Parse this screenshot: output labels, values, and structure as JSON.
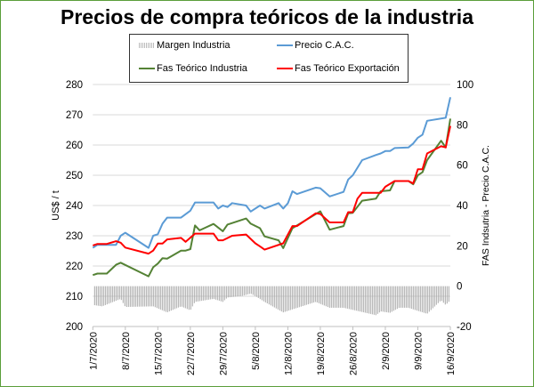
{
  "chart_data": {
    "type": "line",
    "title": "Precios de compra teóricos de la industria",
    "ylabel": "US$ / t",
    "y2label": "FAS Indsutria - Precio C.A.C.",
    "ylim": [
      200,
      280
    ],
    "y2lim": [
      -20,
      100
    ],
    "yticks": [
      "200",
      "210",
      "220",
      "230",
      "240",
      "250",
      "260",
      "270",
      "280"
    ],
    "y2ticks": [
      "-20",
      "0",
      "20",
      "40",
      "60",
      "80",
      "100"
    ],
    "xticks": [
      "1/7/2020",
      "8/7/2020",
      "15/7/2020",
      "22/7/2020",
      "29/7/2020",
      "5/8/2020",
      "12/8/2020",
      "19/8/2020",
      "26/8/2020",
      "2/9/2020",
      "9/9/2020",
      "16/9/2020"
    ],
    "grid": true,
    "legend_position": "top",
    "series": [
      {
        "name": "Margen Industria",
        "type": "bar",
        "axis": "right",
        "color": "#a6a6a6",
        "points": [
          [
            "1/7",
            -9.3
          ],
          [
            "3/7",
            -10
          ],
          [
            "7/7",
            -6.3
          ],
          [
            "8/7",
            -10.3
          ],
          [
            "14/7",
            -10
          ],
          [
            "17/7",
            -13
          ],
          [
            "20/7",
            -10
          ],
          [
            "22/7",
            -12
          ],
          [
            "23/7",
            -7.8
          ],
          [
            "27/7",
            -6.3
          ],
          [
            "29/7",
            -7.8
          ],
          [
            "30/7",
            -5.6
          ],
          [
            "2/8",
            -4.9
          ],
          [
            "4/8",
            -3.7
          ],
          [
            "5/8",
            -4.9
          ],
          [
            "7/8",
            -7.8
          ],
          [
            "11/8",
            -13
          ],
          [
            "13/8",
            -11.5
          ],
          [
            "18/8",
            -7.8
          ],
          [
            "21/8",
            -10.7
          ],
          [
            "24/8",
            -10.7
          ],
          [
            "31/8",
            -14.4
          ],
          [
            "1/9",
            -12.5
          ],
          [
            "3/9",
            -13.2
          ],
          [
            "5/9",
            -10.7
          ],
          [
            "7/9",
            -10.7
          ],
          [
            "8/9",
            -11.5
          ],
          [
            "11/9",
            -13.7
          ],
          [
            "14/9",
            -7
          ],
          [
            "15/9",
            -9.3
          ],
          [
            "16/9",
            -7
          ]
        ]
      },
      {
        "name": "Precio C.A.C.",
        "type": "line",
        "axis": "left",
        "color": "#5b9bd5",
        "points": [
          [
            "1/7",
            226
          ],
          [
            "2/7",
            227
          ],
          [
            "6/7",
            227
          ],
          [
            "7/7",
            230
          ],
          [
            "8/7",
            231
          ],
          [
            "13/7",
            226
          ],
          [
            "14/7",
            230
          ],
          [
            "15/7",
            230.5
          ],
          [
            "16/7",
            234
          ],
          [
            "17/7",
            236
          ],
          [
            "20/7",
            236
          ],
          [
            "22/7",
            238.3
          ],
          [
            "23/7",
            241
          ],
          [
            "27/7",
            241
          ],
          [
            "28/7",
            239
          ],
          [
            "29/7",
            240
          ],
          [
            "30/7",
            239.5
          ],
          [
            "31/7",
            240.8
          ],
          [
            "3/8",
            240
          ],
          [
            "4/8",
            238
          ],
          [
            "6/8",
            240
          ],
          [
            "7/8",
            239
          ],
          [
            "10/8",
            240.8
          ],
          [
            "11/8",
            239
          ],
          [
            "12/8",
            240.7
          ],
          [
            "13/8",
            244.7
          ],
          [
            "14/8",
            243.8
          ],
          [
            "18/8",
            245.9
          ],
          [
            "19/8",
            245.7
          ],
          [
            "21/8",
            243
          ],
          [
            "24/8",
            244.5
          ],
          [
            "25/8",
            248.6
          ],
          [
            "26/8",
            250
          ],
          [
            "28/8",
            255
          ],
          [
            "31/8",
            256.7
          ],
          [
            "1/9",
            257.2
          ],
          [
            "2/9",
            258
          ],
          [
            "3/9",
            258
          ],
          [
            "4/9",
            259
          ],
          [
            "7/9",
            259.2
          ],
          [
            "8/9",
            260.5
          ],
          [
            "9/9",
            262.4
          ],
          [
            "10/9",
            263.4
          ],
          [
            "11/9",
            268
          ],
          [
            "15/9",
            269
          ],
          [
            "16/9",
            275.8
          ]
        ]
      },
      {
        "name": "Fas Teórico Industria",
        "type": "line",
        "axis": "left",
        "color": "#548235",
        "points": [
          [
            "1/7",
            217
          ],
          [
            "2/7",
            217.5
          ],
          [
            "4/7",
            217.5
          ],
          [
            "6/7",
            220.4
          ],
          [
            "7/7",
            221.1
          ],
          [
            "13/7",
            216.6
          ],
          [
            "14/7",
            219.6
          ],
          [
            "15/7",
            220.8
          ],
          [
            "16/7",
            222.6
          ],
          [
            "17/7",
            222.4
          ],
          [
            "20/7",
            225.1
          ],
          [
            "21/7",
            225.1
          ],
          [
            "22/7",
            225.6
          ],
          [
            "23/7",
            233.4
          ],
          [
            "24/7",
            231.8
          ],
          [
            "27/7",
            233.9
          ],
          [
            "29/7",
            231.5
          ],
          [
            "30/7",
            233.7
          ],
          [
            "3/8",
            235.7
          ],
          [
            "4/8",
            234
          ],
          [
            "6/8",
            232.5
          ],
          [
            "7/8",
            229.8
          ],
          [
            "10/8",
            228.5
          ],
          [
            "11/8",
            225.9
          ],
          [
            "13/8",
            232.5
          ],
          [
            "19/8",
            238.1
          ],
          [
            "21/8",
            232
          ],
          [
            "24/8",
            233.2
          ],
          [
            "25/8",
            237.4
          ],
          [
            "26/8",
            237.6
          ],
          [
            "28/8",
            241.6
          ],
          [
            "31/8",
            242.3
          ],
          [
            "1/9",
            244.7
          ],
          [
            "3/9",
            245
          ],
          [
            "4/9",
            248.1
          ],
          [
            "7/9",
            248.1
          ],
          [
            "8/9",
            247
          ],
          [
            "9/9",
            250
          ],
          [
            "10/9",
            251
          ],
          [
            "11/9",
            255
          ],
          [
            "14/9",
            261.4
          ],
          [
            "15/9",
            259.2
          ],
          [
            "16/9",
            268.7
          ]
        ]
      },
      {
        "name": "Fas Teórico Exportación",
        "type": "line",
        "axis": "left",
        "color": "#ff0000",
        "points": [
          [
            "1/7",
            226.8
          ],
          [
            "2/7",
            227.3
          ],
          [
            "4/7",
            227.3
          ],
          [
            "6/7",
            228.2
          ],
          [
            "7/7",
            227.7
          ],
          [
            "8/7",
            226.1
          ],
          [
            "13/7",
            224.1
          ],
          [
            "14/7",
            225.1
          ],
          [
            "15/7",
            227.4
          ],
          [
            "16/7",
            227.4
          ],
          [
            "17/7",
            228.8
          ],
          [
            "20/7",
            229.3
          ],
          [
            "21/7",
            228
          ],
          [
            "23/7",
            230.7
          ],
          [
            "27/7",
            230.7
          ],
          [
            "28/7",
            228.5
          ],
          [
            "29/7",
            228.5
          ],
          [
            "31/7",
            230
          ],
          [
            "3/8",
            230.4
          ],
          [
            "5/8",
            227.5
          ],
          [
            "6/8",
            226.5
          ],
          [
            "7/8",
            225.4
          ],
          [
            "11/8",
            227.5
          ],
          [
            "13/8",
            233.2
          ],
          [
            "14/8",
            233.2
          ],
          [
            "18/8",
            237.4
          ],
          [
            "19/8",
            237.2
          ],
          [
            "21/8",
            234.4
          ],
          [
            "24/8",
            234.4
          ],
          [
            "25/8",
            237.8
          ],
          [
            "26/8",
            237.8
          ],
          [
            "27/8",
            242.3
          ],
          [
            "28/8",
            244.2
          ],
          [
            "1/9",
            244.2
          ],
          [
            "2/9",
            246.2
          ],
          [
            "4/9",
            248.1
          ],
          [
            "7/9",
            248.1
          ],
          [
            "8/9",
            247.3
          ],
          [
            "9/9",
            252
          ],
          [
            "10/9",
            252
          ],
          [
            "11/9",
            257.2
          ],
          [
            "14/9",
            259.6
          ],
          [
            "15/9",
            259.2
          ],
          [
            "16/9",
            266.3
          ]
        ]
      }
    ]
  }
}
